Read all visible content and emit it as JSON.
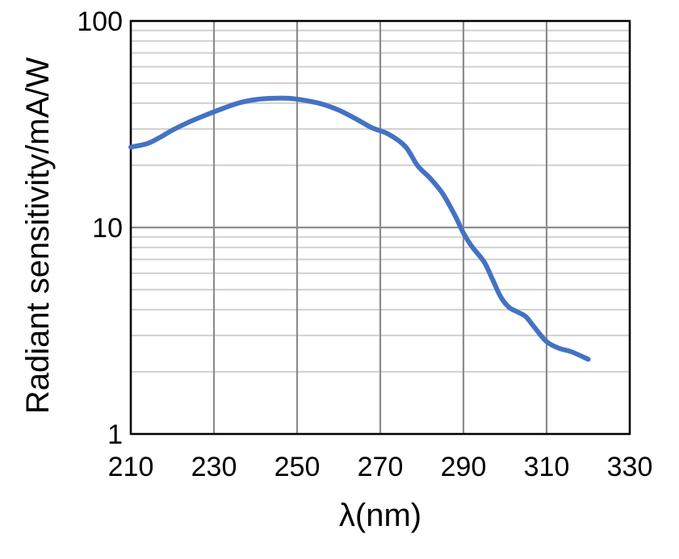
{
  "chart_data": {
    "type": "line",
    "title": "",
    "xlabel": "λ(nm)",
    "ylabel": "Radiant sensitivity/mA/W",
    "xlim": [
      210,
      330
    ],
    "ylim": [
      1,
      100
    ],
    "y_scale": "log",
    "grid": true,
    "x_ticks": [
      "210",
      "230",
      "250",
      "270",
      "290",
      "310",
      "330"
    ],
    "y_ticks": [
      "1",
      "10",
      "100"
    ],
    "line_color": "#4472C4",
    "grid_color_major": "#8c8c8c",
    "grid_color_minor": "#d0d0d0",
    "series": [
      {
        "x": [
          210,
          214,
          217,
          220,
          224,
          228,
          232,
          236,
          240,
          244,
          248,
          252,
          256,
          260,
          264,
          268,
          272,
          276,
          279,
          282,
          285,
          288,
          290,
          292,
          295,
          297,
          299,
          301,
          303,
          305,
          307,
          310,
          313,
          316,
          320
        ],
        "values": [
          24.5,
          25.5,
          27.3,
          29.6,
          32.4,
          35.0,
          37.6,
          40.1,
          41.6,
          42.2,
          42.2,
          41.2,
          39.6,
          37.0,
          33.7,
          30.4,
          28.3,
          24.7,
          19.9,
          17.3,
          14.6,
          11.4,
          9.4,
          8.1,
          6.8,
          5.6,
          4.6,
          4.1,
          3.9,
          3.7,
          3.3,
          2.8,
          2.6,
          2.5,
          2.3
        ]
      }
    ]
  }
}
